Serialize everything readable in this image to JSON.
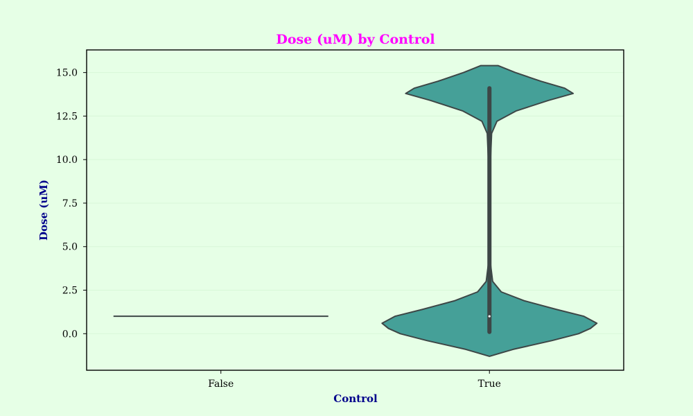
{
  "chart_data": {
    "type": "violin",
    "title": "Dose (uM) by Control",
    "xlabel": "Control",
    "ylabel": "Dose (uM)",
    "categories": [
      "False",
      "True"
    ],
    "ylim": [
      -2.1,
      16.3
    ],
    "yticks": [
      0.0,
      2.5,
      5.0,
      7.5,
      10.0,
      12.5,
      15.0
    ],
    "ytick_labels": [
      "0.0",
      "2.5",
      "5.0",
      "7.5",
      "10.0",
      "12.5",
      "15.0"
    ],
    "grid": true,
    "violins": [
      {
        "category": "False",
        "values": [
          1.0
        ],
        "median": 1.0,
        "shape": "degenerate-line"
      },
      {
        "category": "True",
        "min": 0.1,
        "max": 14.1,
        "median": 1.0,
        "range": [
          -1.3,
          15.4
        ],
        "density_profile": [
          {
            "y": -1.3,
            "w": 0.0
          },
          {
            "y": -0.9,
            "w": 0.22
          },
          {
            "y": -0.4,
            "w": 0.58
          },
          {
            "y": 0.0,
            "w": 0.83
          },
          {
            "y": 0.3,
            "w": 0.94
          },
          {
            "y": 0.6,
            "w": 1.0
          },
          {
            "y": 1.0,
            "w": 0.88
          },
          {
            "y": 1.4,
            "w": 0.62
          },
          {
            "y": 1.9,
            "w": 0.32
          },
          {
            "y": 2.4,
            "w": 0.11
          },
          {
            "y": 3.0,
            "w": 0.03
          },
          {
            "y": 4.0,
            "w": 0.01
          },
          {
            "y": 10.0,
            "w": 0.01
          },
          {
            "y": 11.5,
            "w": 0.02
          },
          {
            "y": 12.2,
            "w": 0.07
          },
          {
            "y": 12.8,
            "w": 0.25
          },
          {
            "y": 13.4,
            "w": 0.55
          },
          {
            "y": 13.8,
            "w": 0.78
          },
          {
            "y": 14.1,
            "w": 0.7
          },
          {
            "y": 14.5,
            "w": 0.48
          },
          {
            "y": 15.0,
            "w": 0.24
          },
          {
            "y": 15.4,
            "w": 0.08
          }
        ]
      }
    ],
    "colors": {
      "background": "#e6ffe6",
      "violin_fill": "#45a098",
      "outline": "#3d4646",
      "title": "#ff00ff",
      "axis_label": "#00008b",
      "grid": "#d8f7d8"
    }
  }
}
